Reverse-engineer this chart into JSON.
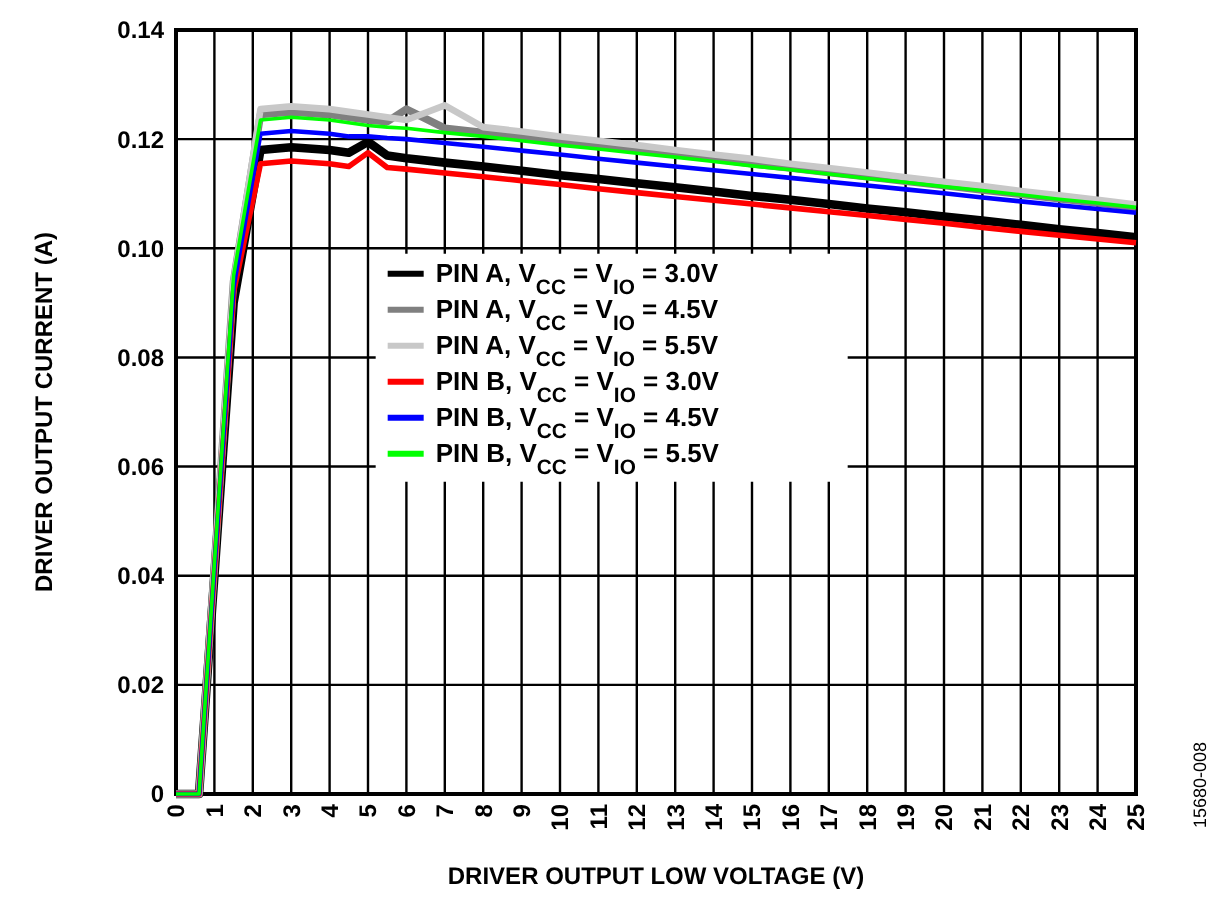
{
  "chart_data": {
    "type": "line",
    "xlabel": "DRIVER OUTPUT LOW VOLTAGE (V)",
    "ylabel": "DRIVER OUTPUT CURRENT (A)",
    "x": [
      0,
      0.6,
      1.5,
      2.2,
      3,
      4,
      4.5,
      5,
      5.5,
      6,
      7,
      8,
      9,
      10,
      11,
      12,
      13,
      14,
      15,
      16,
      17,
      18,
      19,
      20,
      21,
      22,
      23,
      24,
      25
    ],
    "series": [
      {
        "name": "PIN A, V$_{CC}$ = V$_{IO}$ = 3.0V",
        "color": "#000000",
        "values": [
          0,
          0,
          0.09,
          0.118,
          0.1185,
          0.118,
          0.1175,
          0.1195,
          0.117,
          0.1165,
          0.1157,
          0.115,
          0.1142,
          0.1134,
          0.1127,
          0.1119,
          0.1112,
          0.1104,
          0.1096,
          0.1089,
          0.1081,
          0.1073,
          0.1066,
          0.1058,
          0.1051,
          0.1043,
          0.1035,
          0.1028,
          0.102
        ]
      },
      {
        "name": "PIN A, V$_{CC}$ = V$_{IO}$ = 4.5V",
        "color": "#808080",
        "values": [
          0,
          0,
          0.094,
          0.1245,
          0.125,
          0.1245,
          0.124,
          0.1235,
          0.1232,
          0.1255,
          0.122,
          0.1212,
          0.1204,
          0.1196,
          0.1188,
          0.118,
          0.1172,
          0.1164,
          0.1155,
          0.1147,
          0.1139,
          0.1131,
          0.1123,
          0.1115,
          0.1107,
          0.1099,
          0.1091,
          0.1083,
          0.1075
        ]
      },
      {
        "name": "PIN A, V$_{CC}$ = V$_{IO}$ = 5.5V",
        "color": "#c8c8c8",
        "values": [
          0,
          0,
          0.094,
          0.1255,
          0.126,
          0.1255,
          0.125,
          0.1245,
          0.124,
          0.1235,
          0.1262,
          0.1222,
          0.1214,
          0.1205,
          0.1197,
          0.1189,
          0.118,
          0.1172,
          0.1164,
          0.1155,
          0.1147,
          0.1139,
          0.113,
          0.1122,
          0.1114,
          0.1105,
          0.1097,
          0.1089,
          0.108
        ]
      },
      {
        "name": "PIN B, V$_{CC}$ = V$_{IO}$ = 3.0V",
        "color": "#ff0000",
        "values": [
          0,
          0,
          0.092,
          0.1155,
          0.116,
          0.1155,
          0.115,
          0.1175,
          0.1148,
          0.1145,
          0.1138,
          0.1131,
          0.1124,
          0.1117,
          0.1109,
          0.1102,
          0.1095,
          0.1088,
          0.1081,
          0.1074,
          0.1067,
          0.106,
          0.1053,
          0.1046,
          0.1038,
          0.1031,
          0.1024,
          0.1017,
          0.101
        ]
      },
      {
        "name": "PIN B, V$_{CC}$ = V$_{IO}$ = 4.5V",
        "color": "#0000ff",
        "values": [
          0,
          0,
          0.093,
          0.121,
          0.1215,
          0.121,
          0.1205,
          0.1205,
          0.1202,
          0.12,
          0.1193,
          0.1186,
          0.1179,
          0.1172,
          0.1164,
          0.1157,
          0.115,
          0.1143,
          0.1136,
          0.1129,
          0.1122,
          0.1115,
          0.1108,
          0.1101,
          0.1093,
          0.1086,
          0.1079,
          0.1072,
          0.1065
        ]
      },
      {
        "name": "PIN B, V$_{CC}$ = V$_{IO}$ = 5.5V",
        "color": "#00ff00",
        "values": [
          0,
          0,
          0.095,
          0.1235,
          0.124,
          0.1235,
          0.123,
          0.1225,
          0.1222,
          0.122,
          0.1212,
          0.1205,
          0.1197,
          0.1189,
          0.1182,
          0.1174,
          0.1167,
          0.1159,
          0.1151,
          0.1144,
          0.1136,
          0.1128,
          0.1121,
          0.1113,
          0.1106,
          0.1098,
          0.109,
          0.1083,
          0.1075
        ]
      }
    ],
    "xlim": [
      0,
      25
    ],
    "xticks": [
      0,
      1,
      2,
      3,
      4,
      5,
      6,
      7,
      8,
      9,
      10,
      11,
      12,
      13,
      14,
      15,
      16,
      17,
      18,
      19,
      20,
      21,
      22,
      23,
      24,
      25
    ],
    "ylim": [
      0,
      0.14
    ],
    "yticks": [
      0,
      0.02,
      0.04,
      0.06,
      0.08,
      {
        "value": 0.1,
        "label": "0.10"
      },
      0.12,
      0.14
    ],
    "grid": true,
    "legend": "center",
    "marker": "none",
    "line_style": "solid",
    "annotations": [
      "15680-008"
    ]
  }
}
